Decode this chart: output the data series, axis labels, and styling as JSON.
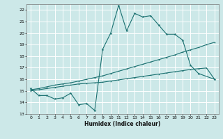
{
  "xlabel": "Humidex (Indice chaleur)",
  "bg_color": "#cce8e8",
  "grid_color": "#ffffff",
  "line_color": "#1a7070",
  "ylim": [
    13,
    22.5
  ],
  "xlim": [
    -0.5,
    23.5
  ],
  "yticks": [
    13,
    14,
    15,
    16,
    17,
    18,
    19,
    20,
    21,
    22
  ],
  "xticks": [
    0,
    1,
    2,
    3,
    4,
    5,
    6,
    7,
    8,
    9,
    10,
    11,
    12,
    13,
    14,
    15,
    16,
    17,
    18,
    19,
    20,
    21,
    22,
    23
  ],
  "line1_x": [
    0,
    1,
    2,
    3,
    4,
    5,
    6,
    7,
    8,
    9,
    10,
    11,
    12,
    13,
    14,
    15,
    16,
    17,
    18,
    19,
    20,
    21,
    23
  ],
  "line1_y": [
    15.2,
    14.6,
    14.6,
    14.3,
    14.4,
    14.8,
    13.8,
    13.9,
    13.3,
    18.6,
    20.0,
    22.4,
    20.2,
    21.7,
    21.4,
    21.5,
    20.7,
    19.9,
    19.9,
    19.4,
    17.2,
    16.5,
    16.0
  ],
  "line2_x": [
    0,
    1,
    2,
    3,
    4,
    5,
    6,
    7,
    8,
    9,
    10,
    11,
    12,
    13,
    14,
    15,
    16,
    17,
    18,
    19,
    20,
    21,
    22,
    23
  ],
  "line2_y": [
    15.1,
    15.2,
    15.35,
    15.5,
    15.6,
    15.7,
    15.85,
    16.0,
    16.15,
    16.3,
    16.5,
    16.7,
    16.9,
    17.1,
    17.3,
    17.5,
    17.7,
    17.9,
    18.1,
    18.35,
    18.55,
    18.75,
    19.0,
    19.2
  ],
  "line3_x": [
    0,
    1,
    2,
    3,
    4,
    5,
    6,
    7,
    8,
    9,
    10,
    11,
    12,
    13,
    14,
    15,
    16,
    17,
    18,
    19,
    20,
    21,
    22,
    23
  ],
  "line3_y": [
    15.0,
    15.1,
    15.2,
    15.3,
    15.4,
    15.5,
    15.6,
    15.65,
    15.7,
    15.75,
    15.85,
    15.95,
    16.05,
    16.15,
    16.25,
    16.35,
    16.45,
    16.55,
    16.65,
    16.75,
    16.85,
    16.92,
    16.98,
    16.0
  ]
}
